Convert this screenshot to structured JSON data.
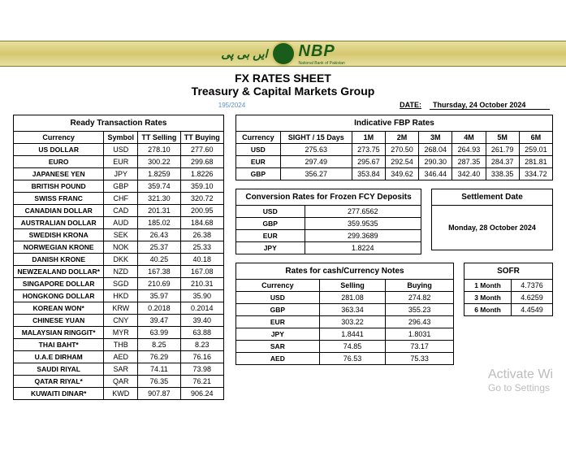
{
  "header": {
    "script_left": "ایں بی پی",
    "nbp": "NBP",
    "nbp_sub": "National Bank of Pakistan"
  },
  "titles": {
    "t1": "FX RATES SHEET",
    "t2": "Treasury & Capital Markets Group"
  },
  "dateline": {
    "ref": "195/2024",
    "label": "DATE:",
    "value": "Thursday, 24 October 2024"
  },
  "ready": {
    "title": "Ready Transaction Rates",
    "cols": [
      "Currency",
      "Symbol",
      "TT Selling",
      "TT Buying"
    ],
    "rows": [
      [
        "US DOLLAR",
        "USD",
        "278.10",
        "277.60"
      ],
      [
        "EURO",
        "EUR",
        "300.22",
        "299.68"
      ],
      [
        "JAPANESE YEN",
        "JPY",
        "1.8259",
        "1.8226"
      ],
      [
        "BRITISH POUND",
        "GBP",
        "359.74",
        "359.10"
      ],
      [
        "SWISS FRANC",
        "CHF",
        "321.30",
        "320.72"
      ],
      [
        "CANADIAN DOLLAR",
        "CAD",
        "201.31",
        "200.95"
      ],
      [
        "AUSTRALIAN DOLLAR",
        "AUD",
        "185.02",
        "184.68"
      ],
      [
        "SWEDISH KRONA",
        "SEK",
        "26.43",
        "26.38"
      ],
      [
        "NORWEGIAN KRONE",
        "NOK",
        "25.37",
        "25.33"
      ],
      [
        "DANISH KRONE",
        "DKK",
        "40.25",
        "40.18"
      ],
      [
        "NEWZEALAND DOLLAR*",
        "NZD",
        "167.38",
        "167.08"
      ],
      [
        "SINGAPORE DOLLAR",
        "SGD",
        "210.69",
        "210.31"
      ],
      [
        "HONGKONG DOLLAR",
        "HKD",
        "35.97",
        "35.90"
      ],
      [
        "KOREAN WON*",
        "KRW",
        "0.2018",
        "0.2014"
      ],
      [
        "CHINESE YUAN",
        "CNY",
        "39.47",
        "39.40"
      ],
      [
        "MALAYSIAN RINGGIT*",
        "MYR",
        "63.99",
        "63.88"
      ],
      [
        "THAI BAHT*",
        "THB",
        "8.25",
        "8.23"
      ],
      [
        "U.A.E DIRHAM",
        "AED",
        "76.29",
        "76.16"
      ],
      [
        "SAUDI RIYAL",
        "SAR",
        "74.11",
        "73.98"
      ],
      [
        "QATAR RIYAL*",
        "QAR",
        "76.35",
        "76.21"
      ],
      [
        "KUWAITI DINAR*",
        "KWD",
        "907.87",
        "906.24"
      ]
    ]
  },
  "fbp": {
    "title": "Indicative FBP Rates",
    "cols": [
      "Currency",
      "SIGHT / 15 Days",
      "1M",
      "2M",
      "3M",
      "4M",
      "5M",
      "6M"
    ],
    "rows": [
      [
        "USD",
        "275.63",
        "273.75",
        "270.50",
        "268.04",
        "264.93",
        "261.79",
        "259.01"
      ],
      [
        "EUR",
        "297.49",
        "295.67",
        "292.54",
        "290.30",
        "287.35",
        "284.37",
        "281.81"
      ],
      [
        "GBP",
        "356.27",
        "353.84",
        "349.62",
        "346.44",
        "342.40",
        "338.35",
        "334.72"
      ]
    ]
  },
  "frozen": {
    "title": "Conversion Rates for Frozen FCY Deposits",
    "rows": [
      [
        "USD",
        "277.6562"
      ],
      [
        "GBP",
        "359.9535"
      ],
      [
        "EUR",
        "299.3689"
      ],
      [
        "JPY",
        "1.8224"
      ]
    ]
  },
  "settlement": {
    "title": "Settlement Date",
    "value": "Monday, 28 October 2024"
  },
  "cash": {
    "title": "Rates for cash/Currency Notes",
    "cols": [
      "Currency",
      "Selling",
      "Buying"
    ],
    "rows": [
      [
        "USD",
        "281.08",
        "274.82"
      ],
      [
        "GBP",
        "363.34",
        "355.23"
      ],
      [
        "EUR",
        "303.22",
        "296.43"
      ],
      [
        "JPY",
        "1.8441",
        "1.8031"
      ],
      [
        "SAR",
        "74.85",
        "73.17"
      ],
      [
        "AED",
        "76.53",
        "75.33"
      ]
    ]
  },
  "sofr": {
    "title": "SOFR",
    "rows": [
      [
        "1 Month",
        "4.7376"
      ],
      [
        "3 Month",
        "4.6259"
      ],
      [
        "6 Month",
        "4.4549"
      ]
    ]
  },
  "watermark": {
    "line1": "Activate Wi",
    "line2": "Go to Settings"
  }
}
